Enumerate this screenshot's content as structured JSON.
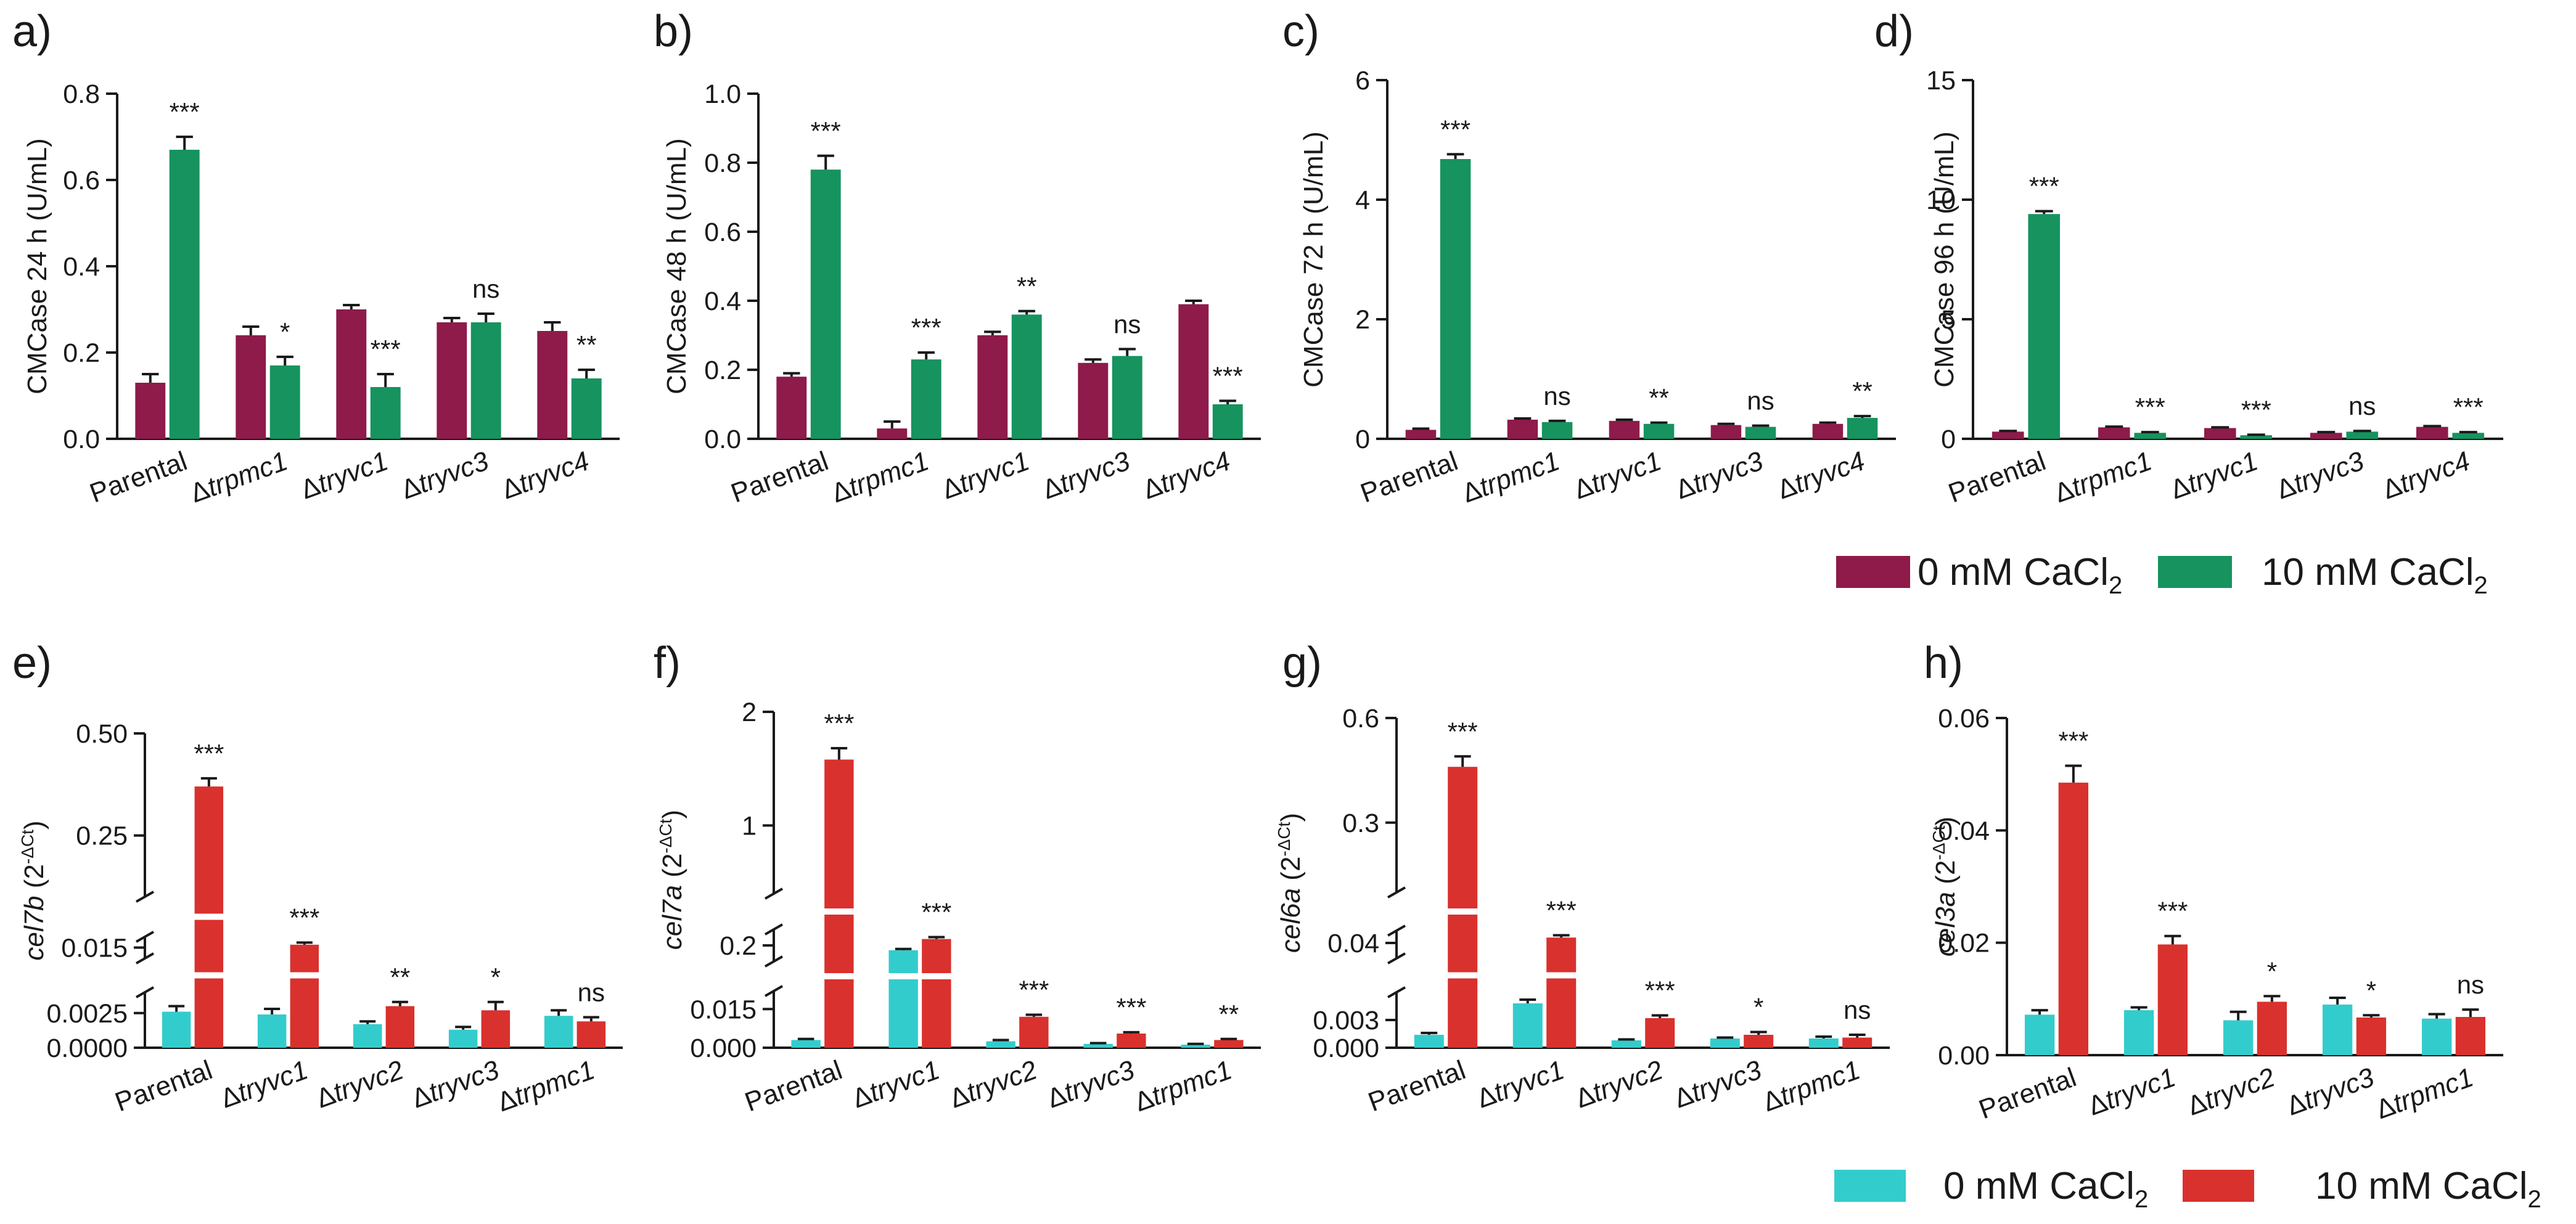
{
  "colors": {
    "ca0_top": "#8e1b4a",
    "ca10_top": "#16935f",
    "ca0_bottom": "#33cccc",
    "ca10_bottom": "#d9312e"
  },
  "legend_top": {
    "label0": "0 mM CaCl",
    "label10": "10 mM CaCl",
    "sub": "2"
  },
  "legend_bottom": {
    "label0": "0 mM CaCl",
    "label10": "10 mM CaCl",
    "sub": "2"
  },
  "chart_data": [
    {
      "id": "a",
      "panel_label": "a)",
      "type": "bar",
      "ylabel": "CMCase 24 h (U/mL)",
      "ylim": [
        0,
        0.8
      ],
      "yticks": [
        "0.0",
        "0.2",
        "0.4",
        "0.6",
        "0.8"
      ],
      "categories": [
        "Parental",
        "Δtrpmc1",
        "Δtryvc1",
        "Δtryvc3",
        "Δtryvc4"
      ],
      "series": [
        {
          "name": "0 mM CaCl2",
          "values": [
            0.13,
            0.24,
            0.3,
            0.27,
            0.25
          ],
          "errors": [
            0.02,
            0.02,
            0.01,
            0.01,
            0.02
          ]
        },
        {
          "name": "10 mM CaCl2",
          "values": [
            0.67,
            0.17,
            0.12,
            0.27,
            0.14
          ],
          "errors": [
            0.03,
            0.02,
            0.03,
            0.02,
            0.02
          ]
        }
      ],
      "significance": [
        "***",
        "*",
        "***",
        "ns",
        "**"
      ]
    },
    {
      "id": "b",
      "panel_label": "b)",
      "type": "bar",
      "ylabel": "CMCase 48 h (U/mL)",
      "ylim": [
        0,
        1.0
      ],
      "yticks": [
        "0.0",
        "0.2",
        "0.4",
        "0.6",
        "0.8",
        "1.0"
      ],
      "categories": [
        "Parental",
        "Δtrpmc1",
        "Δtryvc1",
        "Δtryvc3",
        "Δtryvc4"
      ],
      "series": [
        {
          "name": "0 mM CaCl2",
          "values": [
            0.18,
            0.03,
            0.3,
            0.22,
            0.39
          ],
          "errors": [
            0.01,
            0.02,
            0.01,
            0.01,
            0.01
          ]
        },
        {
          "name": "10 mM CaCl2",
          "values": [
            0.78,
            0.23,
            0.36,
            0.24,
            0.1
          ],
          "errors": [
            0.04,
            0.02,
            0.01,
            0.02,
            0.01
          ]
        }
      ],
      "significance": [
        "***",
        "***",
        "**",
        "ns",
        "***"
      ]
    },
    {
      "id": "c",
      "panel_label": "c)",
      "type": "bar",
      "ylabel": "CMCase 72 h (U/mL)",
      "ylim": [
        0,
        6
      ],
      "yticks": [
        "0",
        "2",
        "4",
        "6"
      ],
      "categories": [
        "Parental",
        "Δtrpmc1",
        "Δtryvc1",
        "Δtryvc3",
        "Δtryvc4"
      ],
      "series": [
        {
          "name": "0 mM CaCl2",
          "values": [
            0.15,
            0.32,
            0.3,
            0.23,
            0.25
          ],
          "errors": [
            0.02,
            0.02,
            0.02,
            0.02,
            0.02
          ]
        },
        {
          "name": "10 mM CaCl2",
          "values": [
            4.68,
            0.28,
            0.25,
            0.2,
            0.35
          ],
          "errors": [
            0.08,
            0.02,
            0.02,
            0.02,
            0.03
          ]
        }
      ],
      "significance": [
        "***",
        "ns",
        "**",
        "ns",
        "**"
      ]
    },
    {
      "id": "d",
      "panel_label": "d)",
      "type": "bar",
      "ylabel": "CMCase 96 h (U/mL)",
      "ylim": [
        0,
        15
      ],
      "yticks": [
        "0",
        "5",
        "10",
        "15"
      ],
      "categories": [
        "Parental",
        "Δtrpmc1",
        "Δtryvc1",
        "Δtryvc3",
        "Δtryvc4"
      ],
      "series": [
        {
          "name": "0 mM CaCl2",
          "values": [
            0.3,
            0.48,
            0.45,
            0.25,
            0.5
          ],
          "errors": [
            0.03,
            0.03,
            0.03,
            0.03,
            0.03
          ]
        },
        {
          "name": "10 mM CaCl2",
          "values": [
            9.4,
            0.25,
            0.15,
            0.3,
            0.25
          ],
          "errors": [
            0.12,
            0.03,
            0.02,
            0.03,
            0.03
          ]
        }
      ],
      "significance": [
        "***",
        "***",
        "***",
        "ns",
        "***"
      ]
    },
    {
      "id": "e",
      "panel_label": "e)",
      "type": "bar",
      "ylabel_gene": "cel7b",
      "ylabel_rest": " (2",
      "ylabel_sup": "-ΔCt",
      "ylabel_close": ")",
      "axis_break": true,
      "y_segments": [
        {
          "range": [
            0,
            0.004
          ],
          "ticks": [
            0,
            0.0025
          ],
          "labels": [
            "0.0000",
            "0.0025"
          ]
        },
        {
          "range": [
            0.012,
            0.018
          ],
          "ticks": [
            0.015
          ],
          "labels": [
            "0.015"
          ]
        },
        {
          "range": [
            0.1,
            0.5
          ],
          "ticks": [
            0.25,
            0.5
          ],
          "labels": [
            "0.25",
            "0.50"
          ]
        }
      ],
      "categories": [
        "Parental",
        "Δtryvc1",
        "Δtryvc2",
        "Δtryvc3",
        "Δtrpmc1"
      ],
      "series": [
        {
          "name": "0 mM CaCl2",
          "values": [
            0.0026,
            0.0024,
            0.0017,
            0.0013,
            0.0023
          ],
          "errors": [
            0.0004,
            0.0004,
            0.0002,
            0.0002,
            0.0004
          ]
        },
        {
          "name": "10 mM CaCl2",
          "values": [
            0.37,
            0.0158,
            0.003,
            0.0027,
            0.0019
          ],
          "errors": [
            0.02,
            0.0006,
            0.0003,
            0.0006,
            0.0003
          ]
        }
      ],
      "significance": [
        "***",
        "***",
        "**",
        "*",
        "ns"
      ]
    },
    {
      "id": "f",
      "panel_label": "f)",
      "type": "bar",
      "ylabel_gene": "cel7a",
      "ylabel_rest": " (2",
      "ylabel_sup": "-ΔCt",
      "ylabel_close": ")",
      "axis_break": true,
      "y_segments": [
        {
          "range": [
            0,
            0.022
          ],
          "ticks": [
            0,
            0.015
          ],
          "labels": [
            "0.000",
            "0.015"
          ]
        },
        {
          "range": [
            0.15,
            0.25
          ],
          "ticks": [
            0.2
          ],
          "labels": [
            "0.2"
          ]
        },
        {
          "range": [
            0.4,
            2.0
          ],
          "ticks": [
            1,
            2
          ],
          "labels": [
            "1",
            "2"
          ]
        }
      ],
      "categories": [
        "Parental",
        "Δtryvc1",
        "Δtryvc2",
        "Δtryvc3",
        "Δtrpmc1"
      ],
      "series": [
        {
          "name": "0 mM CaCl2",
          "values": [
            0.003,
            0.185,
            0.0025,
            0.0015,
            0.0012
          ],
          "errors": [
            0.0004,
            0.004,
            0.0005,
            0.0003,
            0.0003
          ]
        },
        {
          "name": "10 mM CaCl2",
          "values": [
            1.58,
            0.22,
            0.012,
            0.0055,
            0.003
          ],
          "errors": [
            0.1,
            0.006,
            0.0008,
            0.0005,
            0.0004
          ]
        }
      ],
      "significance": [
        "***",
        "***",
        "***",
        "***",
        "**"
      ]
    },
    {
      "id": "g",
      "panel_label": "g)",
      "type": "bar",
      "ylabel_gene": "cel6a",
      "ylabel_rest": " (2",
      "ylabel_sup": "-ΔCt",
      "ylabel_close": ")",
      "axis_break": true,
      "y_segments": [
        {
          "range": [
            0,
            0.006
          ],
          "ticks": [
            0,
            0.003
          ],
          "labels": [
            "0.000",
            "0.003"
          ]
        },
        {
          "range": [
            0.03,
            0.048
          ],
          "ticks": [
            0.04
          ],
          "labels": [
            "0.04"
          ]
        },
        {
          "range": [
            0.1,
            0.6
          ],
          "ticks": [
            0.3,
            0.6
          ],
          "labels": [
            "0.3",
            "0.6"
          ]
        }
      ],
      "categories": [
        "Parental",
        "Δtryvc1",
        "Δtryvc2",
        "Δtryvc3",
        "Δtrpmc1"
      ],
      "series": [
        {
          "name": "0 mM CaCl2",
          "values": [
            0.0014,
            0.0048,
            0.0008,
            0.001,
            0.001
          ],
          "errors": [
            0.0002,
            0.0004,
            0.0001,
            0.0001,
            0.0002
          ]
        },
        {
          "name": "10 mM CaCl2",
          "values": [
            0.46,
            0.0435,
            0.0032,
            0.0014,
            0.0011
          ],
          "errors": [
            0.03,
            0.0015,
            0.0003,
            0.0003,
            0.0003
          ]
        }
      ],
      "significance": [
        "***",
        "***",
        "***",
        "*",
        "ns"
      ]
    },
    {
      "id": "h",
      "panel_label": "h)",
      "type": "bar",
      "ylabel_gene": "cel3a",
      "ylabel_rest": " (2",
      "ylabel_sup": "-ΔCt",
      "ylabel_close": ")",
      "ylim": [
        0,
        0.06
      ],
      "yticks": [
        "0.00",
        "0.02",
        "0.04",
        "0.06"
      ],
      "categories": [
        "Parental",
        "Δtryvc1",
        "Δtryvc2",
        "Δtryvc3",
        "Δtrpmc1"
      ],
      "series": [
        {
          "name": "0 mM CaCl2",
          "values": [
            0.0072,
            0.008,
            0.0062,
            0.009,
            0.0065
          ],
          "errors": [
            0.0008,
            0.0005,
            0.0015,
            0.0012,
            0.0008
          ]
        },
        {
          "name": "10 mM CaCl2",
          "values": [
            0.0485,
            0.0197,
            0.0095,
            0.0067,
            0.0068
          ],
          "errors": [
            0.003,
            0.0015,
            0.001,
            0.0004,
            0.0013
          ]
        }
      ],
      "significance": [
        "***",
        "***",
        "*",
        "*",
        "ns"
      ]
    }
  ]
}
